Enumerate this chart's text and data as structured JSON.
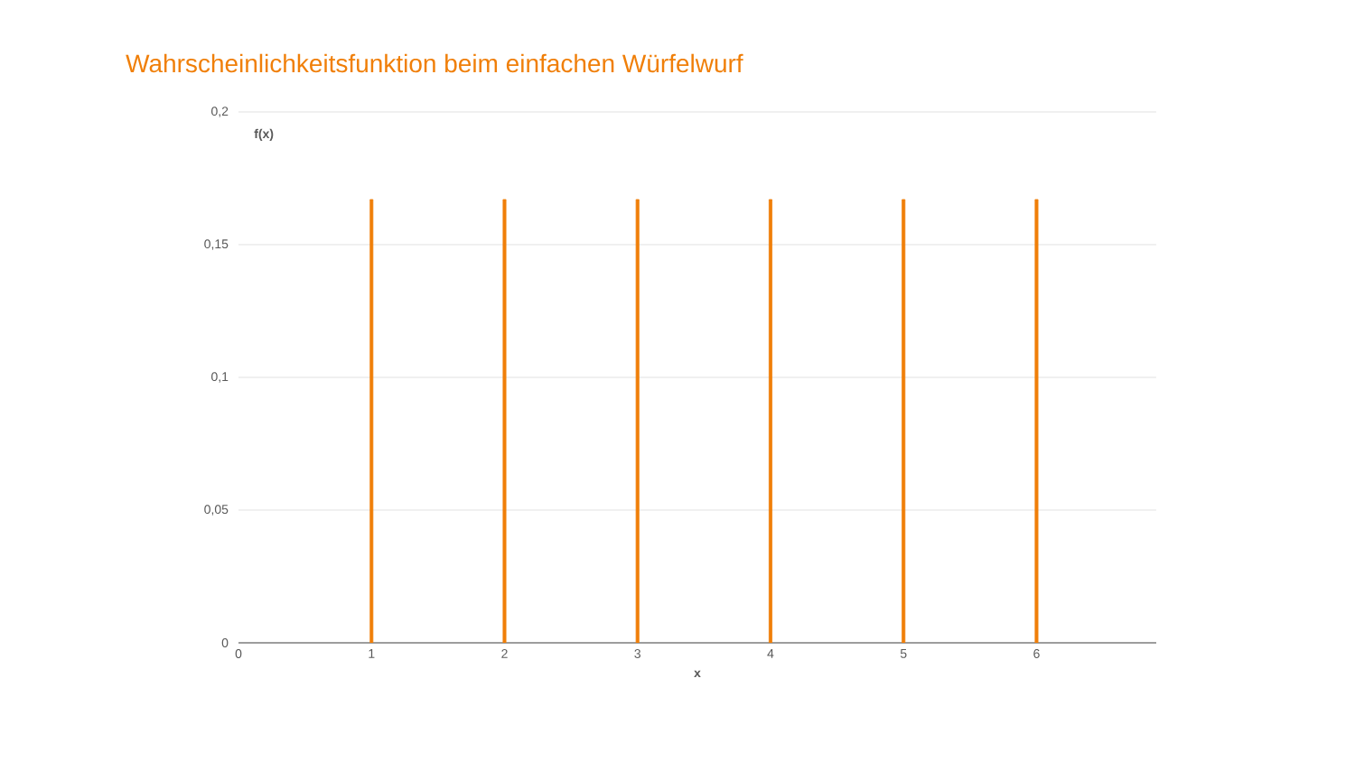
{
  "chart_data": {
    "type": "bar",
    "title": "Wahrscheinlichkeitsfunktion beim einfachen Würfelwurf",
    "xlabel": "x",
    "ylabel": "f(x)",
    "x": [
      1,
      2,
      3,
      4,
      5,
      6
    ],
    "values": [
      0.167,
      0.167,
      0.167,
      0.167,
      0.167,
      0.167
    ],
    "color": "#f07f09",
    "xlim": [
      0,
      6.9
    ],
    "xticks": [
      0,
      1,
      2,
      3,
      4,
      5,
      6
    ],
    "ylim": [
      0,
      0.2
    ],
    "yticks": [
      {
        "value": 0,
        "label": "0"
      },
      {
        "value": 0.05,
        "label": "0,05"
      },
      {
        "value": 0.1,
        "label": "0,1"
      },
      {
        "value": 0.15,
        "label": "0,15"
      },
      {
        "value": 0.2,
        "label": "0,2"
      }
    ],
    "grid": "y"
  }
}
